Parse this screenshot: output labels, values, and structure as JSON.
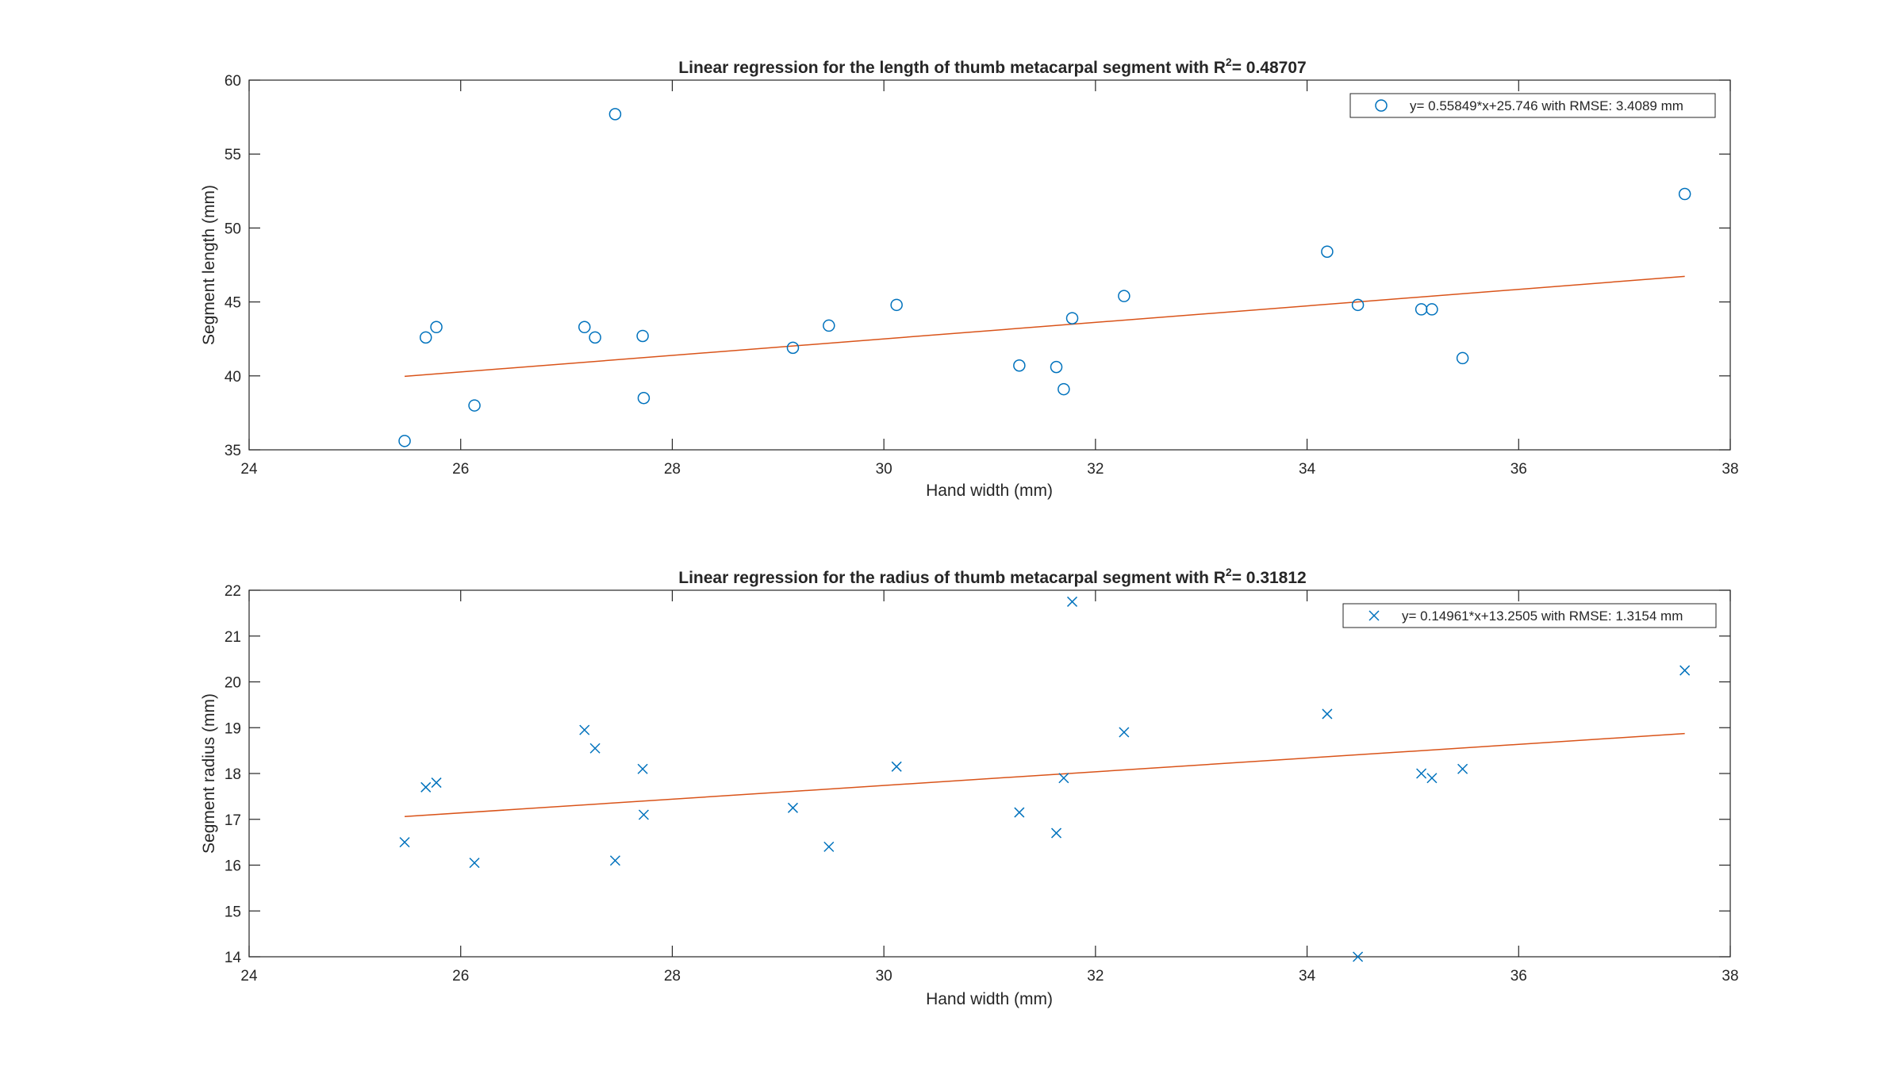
{
  "colors": {
    "scatter": "#0072BD",
    "fit": "#D95319",
    "axis": "#262626",
    "background": "#ffffff"
  },
  "chart_data": [
    {
      "type": "scatter",
      "title_prefix": "Linear regression for the length of thumb metacarpal segment with R",
      "title_sup": "2",
      "title_suffix": "= 0.48707",
      "xlabel": "Hand width (mm)",
      "ylabel": "Segment length (mm)",
      "xlim": [
        24,
        38
      ],
      "ylim": [
        35,
        60
      ],
      "xticks": [
        24,
        26,
        28,
        30,
        32,
        34,
        36,
        38
      ],
      "yticks": [
        35,
        40,
        45,
        50,
        55,
        60
      ],
      "marker": "circle",
      "legend": {
        "label": "y= 0.55849*x+25.746 with RMSE: 3.4089 mm",
        "position": "top-right"
      },
      "fit": {
        "slope": 0.55849,
        "intercept": 25.746,
        "x_range": [
          25.47,
          37.57
        ]
      },
      "points": [
        {
          "x": 25.47,
          "y": 35.6
        },
        {
          "x": 25.67,
          "y": 42.6
        },
        {
          "x": 25.77,
          "y": 43.3
        },
        {
          "x": 26.13,
          "y": 38.0
        },
        {
          "x": 27.17,
          "y": 43.3
        },
        {
          "x": 27.27,
          "y": 42.6
        },
        {
          "x": 27.46,
          "y": 57.7
        },
        {
          "x": 27.72,
          "y": 42.7
        },
        {
          "x": 27.73,
          "y": 38.5
        },
        {
          "x": 29.14,
          "y": 41.9
        },
        {
          "x": 29.48,
          "y": 43.4
        },
        {
          "x": 30.12,
          "y": 44.8
        },
        {
          "x": 31.28,
          "y": 40.7
        },
        {
          "x": 31.63,
          "y": 40.6
        },
        {
          "x": 31.7,
          "y": 39.1
        },
        {
          "x": 31.78,
          "y": 43.9
        },
        {
          "x": 32.27,
          "y": 45.4
        },
        {
          "x": 34.19,
          "y": 48.4
        },
        {
          "x": 34.48,
          "y": 44.8
        },
        {
          "x": 35.08,
          "y": 44.5
        },
        {
          "x": 35.18,
          "y": 44.5
        },
        {
          "x": 35.47,
          "y": 41.2
        },
        {
          "x": 37.57,
          "y": 52.3
        }
      ]
    },
    {
      "type": "scatter",
      "title_prefix": "Linear regression for the radius of thumb metacarpal segment with R",
      "title_sup": "2",
      "title_suffix": "= 0.31812",
      "xlabel": "Hand width (mm)",
      "ylabel": "Segment radius (mm)",
      "xlim": [
        24,
        38
      ],
      "ylim": [
        14,
        22
      ],
      "xticks": [
        24,
        26,
        28,
        30,
        32,
        34,
        36,
        38
      ],
      "yticks": [
        14,
        15,
        16,
        17,
        18,
        19,
        20,
        21,
        22
      ],
      "marker": "x",
      "legend": {
        "label": "y= 0.14961*x+13.2505 with RMSE: 1.3154 mm",
        "position": "top-right"
      },
      "fit": {
        "slope": 0.14961,
        "intercept": 13.2505,
        "x_range": [
          25.47,
          37.57
        ]
      },
      "points": [
        {
          "x": 25.47,
          "y": 16.5
        },
        {
          "x": 25.67,
          "y": 17.7
        },
        {
          "x": 25.77,
          "y": 17.8
        },
        {
          "x": 26.13,
          "y": 16.05
        },
        {
          "x": 27.17,
          "y": 18.95
        },
        {
          "x": 27.27,
          "y": 18.55
        },
        {
          "x": 27.46,
          "y": 16.1
        },
        {
          "x": 27.72,
          "y": 18.1
        },
        {
          "x": 27.73,
          "y": 17.1
        },
        {
          "x": 29.14,
          "y": 17.25
        },
        {
          "x": 29.48,
          "y": 16.4
        },
        {
          "x": 30.12,
          "y": 18.15
        },
        {
          "x": 31.28,
          "y": 17.15
        },
        {
          "x": 31.63,
          "y": 16.7
        },
        {
          "x": 31.7,
          "y": 17.9
        },
        {
          "x": 31.78,
          "y": 21.75
        },
        {
          "x": 32.27,
          "y": 18.9
        },
        {
          "x": 34.19,
          "y": 19.3
        },
        {
          "x": 34.48,
          "y": 14.0
        },
        {
          "x": 35.08,
          "y": 18.0
        },
        {
          "x": 35.18,
          "y": 17.9
        },
        {
          "x": 35.47,
          "y": 18.1
        },
        {
          "x": 37.57,
          "y": 20.25
        }
      ]
    }
  ]
}
